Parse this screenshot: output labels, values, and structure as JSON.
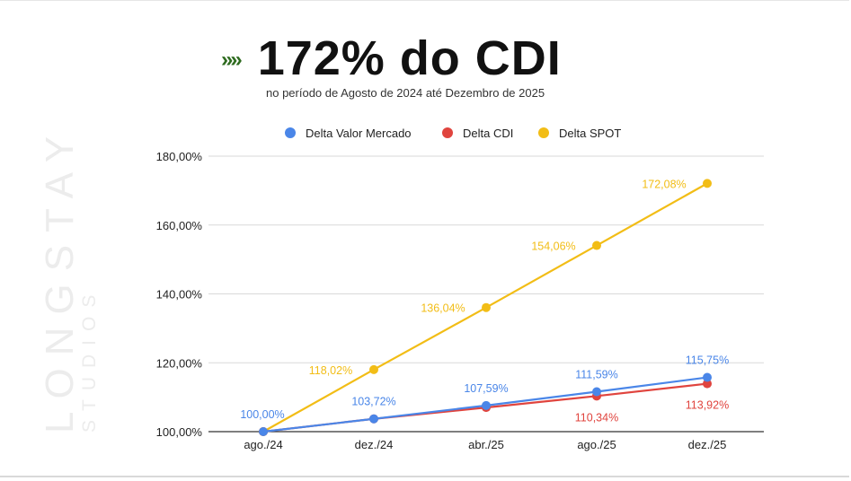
{
  "headline": {
    "arrows": "»»",
    "title": "172% do CDI",
    "subtitle": "no período de Agosto de 2024 até Dezembro de 2025"
  },
  "watermark": {
    "brand": "LONGSTAY",
    "sub": "STUDIOS"
  },
  "chart_data": {
    "type": "line",
    "categories": [
      "ago./24",
      "dez./24",
      "abr./25",
      "ago./25",
      "dez./25"
    ],
    "ylim": [
      100,
      180
    ],
    "yticks": [
      100,
      120,
      140,
      160,
      180
    ],
    "ytick_labels": [
      "100,00%",
      "120,00%",
      "140,00%",
      "160,00%",
      "180,00%"
    ],
    "grid": true,
    "legend_position": "top",
    "series": [
      {
        "name": "Delta Valor Mercado",
        "color": "#4a86e8",
        "values": [
          100.0,
          103.72,
          107.59,
          111.59,
          115.75
        ],
        "labels": [
          "100,00%",
          "103,72%",
          "107,59%",
          "111,59%",
          "115,75%"
        ]
      },
      {
        "name": "Delta CDI",
        "color": "#e0443e",
        "values": [
          100.0,
          103.72,
          107.0,
          110.34,
          113.92
        ],
        "labels": [
          "",
          "",
          "",
          "110,34%",
          "113,92%"
        ]
      },
      {
        "name": "Delta SPOT",
        "color": "#f2bd16",
        "values": [
          100.0,
          118.02,
          136.04,
          154.06,
          172.08
        ],
        "labels": [
          "",
          "118,02%",
          "136,04%",
          "154,06%",
          "172,08%"
        ]
      }
    ]
  }
}
